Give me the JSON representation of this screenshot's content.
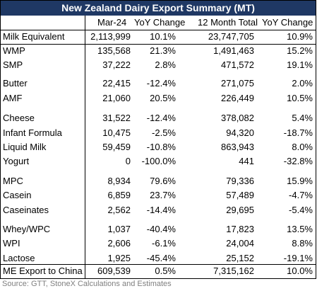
{
  "title": "New Zealand Dairy Export Summary (MT)",
  "header": [
    "Mar-24",
    "YoY Change",
    "12 Month Total",
    "YoY Change"
  ],
  "rows": [
    [
      "Milk Equivalent",
      "2,113,999",
      "10.1%",
      "23,747,705",
      "10.9%"
    ],
    [
      "WMP",
      "135,568",
      "21.3%",
      "1,491,463",
      "15.2%"
    ],
    [
      "SMP",
      "37,222",
      "2.8%",
      "471,572",
      "19.1%"
    ],
    [
      "Butter",
      "22,415",
      "-12.4%",
      "271,075",
      "2.0%"
    ],
    [
      "AMF",
      "21,060",
      "20.5%",
      "226,449",
      "10.5%"
    ],
    [
      "Cheese",
      "31,522",
      "-12.4%",
      "378,082",
      "5.4%"
    ],
    [
      "Infant Formula",
      "10,475",
      "-2.5%",
      "94,320",
      "-18.7%"
    ],
    [
      "Liquid Milk",
      "59,459",
      "-10.8%",
      "863,943",
      "8.0%"
    ],
    [
      "Yogurt",
      "0",
      "-100.0%",
      "441",
      "-32.8%"
    ],
    [
      "MPC",
      "8,934",
      "79.6%",
      "79,336",
      "15.9%"
    ],
    [
      "Casein",
      "6,859",
      "23.7%",
      "57,489",
      "-4.7%"
    ],
    [
      "Caseinates",
      "2,562",
      "-14.4%",
      "29,695",
      "-5.4%"
    ],
    [
      "Whey/WPC",
      "1,037",
      "-40.4%",
      "17,823",
      "13.5%"
    ],
    [
      "WPI",
      "2,606",
      "-6.1%",
      "24,004",
      "8.8%"
    ],
    [
      "Lactose",
      "1,925",
      "-45.4%",
      "25,152",
      "-19.1%"
    ],
    [
      "ME Export to China",
      "609,539",
      "0.5%",
      "7,315,162",
      "10.0%"
    ]
  ],
  "source": "Source: GTT, StoneX Calculations and Estimates"
}
